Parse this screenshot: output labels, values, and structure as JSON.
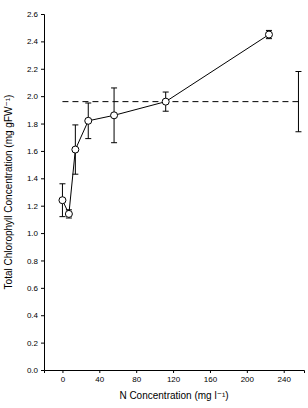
{
  "chart_data": {
    "type": "line",
    "x_label": "N Concentration (mg l⁻¹)",
    "y_label": "Total Chlorophyll Concentration (mg gFW⁻¹)",
    "x": [
      0,
      7,
      14,
      28,
      56,
      112,
      224
    ],
    "values": [
      1.24,
      1.14,
      1.61,
      1.82,
      1.86,
      1.96,
      2.45
    ],
    "errors": [
      0.12,
      0.03,
      0.18,
      0.13,
      0.2,
      0.07,
      0.03
    ],
    "reference": {
      "x": 256,
      "value": 1.96,
      "error": 0.22
    },
    "color": "#000000",
    "marker": "open-circle",
    "line_style": "solid",
    "xlim": [
      -20,
      262
    ],
    "xticks": [
      0,
      40,
      80,
      120,
      160,
      200,
      240
    ],
    "ylim": [
      0,
      2.6
    ],
    "yticks": [
      {
        "value": 0,
        "label": "0.0"
      },
      0.2,
      0.4,
      0.6,
      0.8,
      {
        "value": 1,
        "label": "1.0"
      },
      1.2,
      1.4,
      1.6,
      1.8,
      {
        "value": 2,
        "label": "2.0"
      },
      2.2,
      2.4,
      2.6
    ],
    "grid": false
  }
}
